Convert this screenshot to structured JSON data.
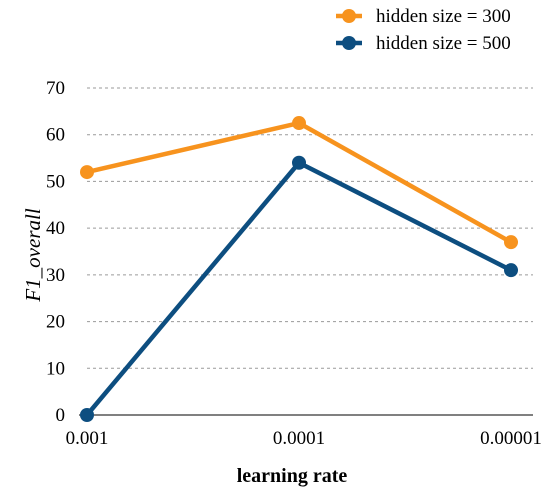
{
  "chart_data": {
    "type": "line",
    "x": [
      "0.001",
      "0.0001",
      "0.00001"
    ],
    "xlabel": "learning rate",
    "ylabel": "F1_overall",
    "ylim": [
      0,
      70
    ],
    "yticks": [
      0,
      10,
      20,
      30,
      40,
      50,
      60,
      70
    ],
    "grid": "horizontal dashed",
    "legend_position": "top-right",
    "series": [
      {
        "name": "hidden size = 300",
        "values": [
          52,
          62.5,
          37
        ],
        "color": "#F7931E"
      },
      {
        "name": "hidden size = 500",
        "values": [
          0,
          54,
          31
        ],
        "color": "#0D4E80"
      }
    ]
  }
}
